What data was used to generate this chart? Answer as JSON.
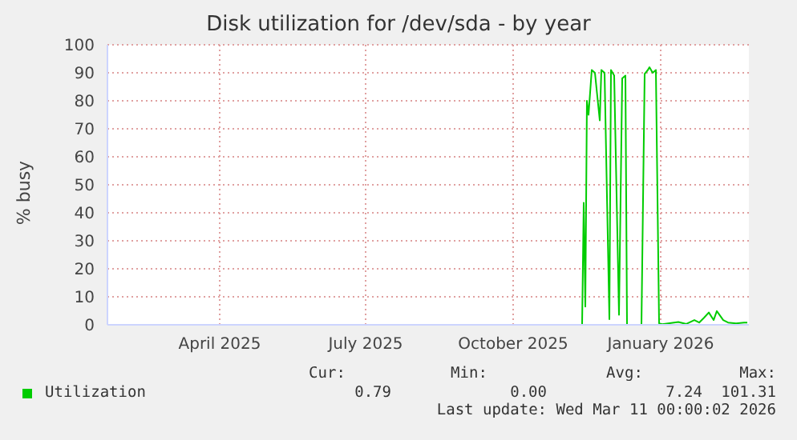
{
  "chart_data": {
    "type": "line",
    "title": "Disk utilization for /dev/sda - by year",
    "ylabel": "% busy",
    "x": [
      "2025-02-04",
      "2025-11-27",
      "2025-11-28",
      "2025-11-29",
      "2025-11-30",
      "2025-12-01",
      "2025-12-03",
      "2025-12-05",
      "2025-12-08",
      "2025-12-09",
      "2025-12-11",
      "2025-12-14",
      "2025-12-15",
      "2025-12-17",
      "2025-12-20",
      "2025-12-22",
      "2025-12-24",
      "2025-12-25",
      "2026-01-03",
      "2026-01-05",
      "2026-01-07",
      "2026-01-08",
      "2026-01-10",
      "2026-01-12",
      "2026-01-14",
      "2026-01-16",
      "2026-01-26",
      "2026-01-31",
      "2026-02-05",
      "2026-02-08",
      "2026-02-11",
      "2026-02-14",
      "2026-02-17",
      "2026-02-19",
      "2026-02-23",
      "2026-02-26",
      "2026-03-03",
      "2026-03-08",
      "2026-03-10"
    ],
    "series": [
      {
        "name": "Utilization",
        "color": "#00cc00",
        "values": [
          0,
          0,
          43.6,
          6.5,
          80,
          75,
          91,
          90,
          73,
          91,
          90,
          2,
          91,
          89,
          3.6,
          88,
          89,
          0,
          0,
          89.6,
          91,
          92,
          90,
          91,
          0.5,
          0.2,
          1,
          0.3,
          1.7,
          0.8,
          2.5,
          4.4,
          1.7,
          4.9,
          1.7,
          0.8,
          0.5,
          0.8,
          0.8
        ]
      }
    ],
    "xlim": [
      "2025-02-04",
      "2026-03-11"
    ],
    "xticks": [
      {
        "value": "2025-04-15",
        "label": "April 2025"
      },
      {
        "value": "2025-07-15",
        "label": "July 2025"
      },
      {
        "value": "2025-10-15",
        "label": "October 2025"
      },
      {
        "value": "2026-01-15",
        "label": "January 2026"
      }
    ],
    "ylim": [
      0,
      100
    ],
    "yticks": [
      0,
      10,
      20,
      30,
      40,
      50,
      60,
      70,
      80,
      90,
      100
    ],
    "grid": true,
    "legend": "bottom left",
    "marker": "none",
    "line_style": "solid",
    "annotations": [
      "Cur:",
      "Min:",
      "Avg:",
      "Max:",
      "0.79",
      "0.00",
      "7.24",
      "101.31",
      "Last update: Wed Mar 11 00:00:02 2026"
    ]
  }
}
